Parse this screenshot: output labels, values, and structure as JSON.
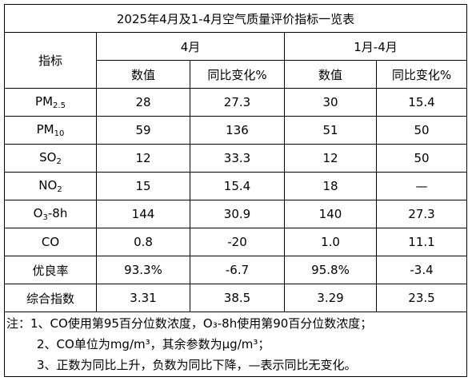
{
  "table": {
    "title": "2025年4月及1-4月空气质量评价指标一览表",
    "header": {
      "indicator": "指标",
      "group1": "4月",
      "group2": "1月-4月",
      "sub": [
        "数值",
        "同比变化%",
        "数值",
        "同比变化%"
      ]
    },
    "rows": [
      {
        "label": [
          "PM",
          "2.5"
        ],
        "cells": [
          "28",
          "27.3",
          "30",
          "15.4"
        ]
      },
      {
        "label": [
          "PM",
          "10"
        ],
        "cells": [
          "59",
          "136",
          "51",
          "50"
        ]
      },
      {
        "label": [
          "SO",
          "2"
        ],
        "cells": [
          "12",
          "33.3",
          "12",
          "50"
        ]
      },
      {
        "label": [
          "NO",
          "2"
        ],
        "cells": [
          "15",
          "15.4",
          "18",
          "—"
        ]
      },
      {
        "label": [
          "O",
          "3",
          "-8h"
        ],
        "cells": [
          "144",
          "30.9",
          "140",
          "27.3"
        ]
      },
      {
        "label": [
          "CO"
        ],
        "cells": [
          "0.8",
          "-20",
          "1.0",
          "11.1"
        ]
      },
      {
        "label": [
          "优良率"
        ],
        "cells": [
          "93.3%",
          "-6.7",
          "95.8%",
          "-3.4"
        ]
      },
      {
        "label": [
          "综合指数"
        ],
        "cells": [
          "3.31",
          "38.5",
          "3.29",
          "23.5"
        ]
      }
    ],
    "notes": [
      "注：1、CO使用第95百分位数浓度，O₃-8h使用第90百分位数浓度；",
      "2、CO单位为mg/m³，其余参数为μg/m³；",
      "3、正数为同比上升，负数为同比下降，—表示同比无变化。"
    ]
  }
}
